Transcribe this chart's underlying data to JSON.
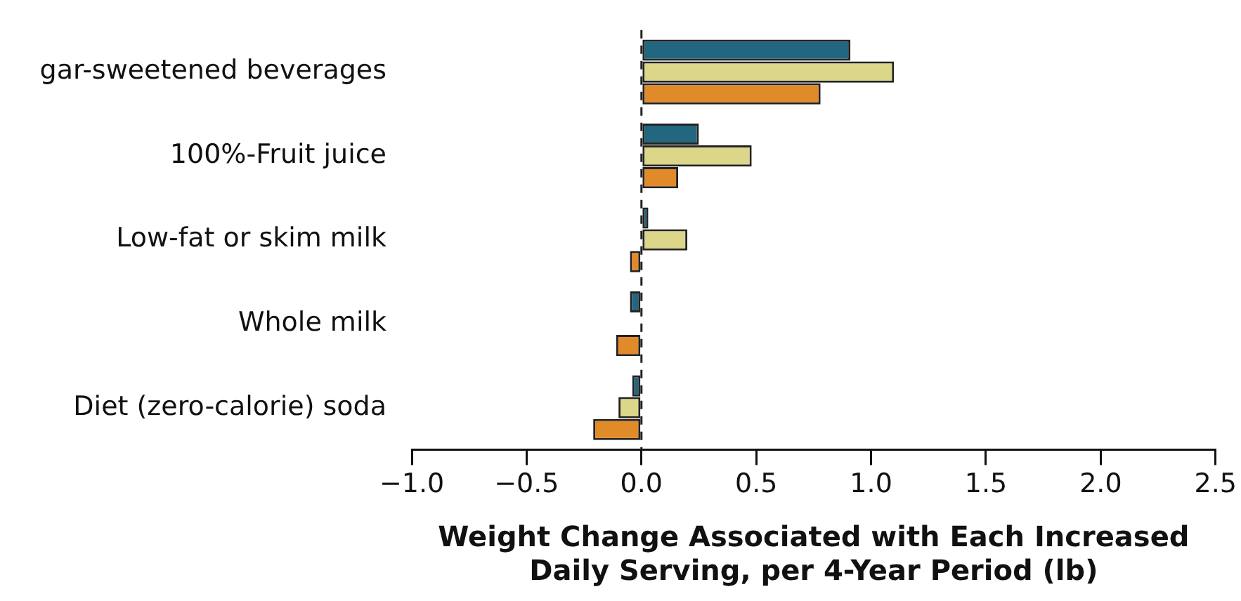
{
  "chart_data": {
    "type": "bar",
    "orientation": "horizontal",
    "categories": [
      "gar-sweetened beverages",
      "100%-Fruit juice",
      "Low-fat or skim milk",
      "Whole milk",
      "Diet (zero-calorie) soda"
    ],
    "series": [
      {
        "color": "#23667f",
        "values": [
          0.91,
          0.25,
          0.03,
          -0.05,
          -0.04
        ]
      },
      {
        "color": "#dcd68a",
        "values": [
          1.1,
          0.48,
          0.2,
          null,
          -0.1
        ]
      },
      {
        "color": "#e08a2a",
        "values": [
          0.78,
          0.16,
          -0.05,
          -0.11,
          -0.21
        ]
      }
    ],
    "xlabel": "Weight Change Associated with Each Increased\nDaily Serving, per 4-Year Period (lb)",
    "xlim": [
      -1,
      2.5
    ],
    "xticks": [
      {
        "value": -1,
        "label": "−1.0"
      },
      {
        "value": -0.5,
        "label": "−0.5"
      },
      {
        "value": 0,
        "label": "0.0"
      },
      {
        "value": 0.5,
        "label": "0.5"
      },
      {
        "value": 1,
        "label": "1.0"
      },
      {
        "value": 1.5,
        "label": "1.5"
      },
      {
        "value": 2,
        "label": "2.0"
      },
      {
        "value": 2.5,
        "label": "2.5"
      }
    ],
    "ref_lines": [
      {
        "axis": "x",
        "value": 0,
        "line_style": "dashed",
        "color": "#222222"
      }
    ]
  }
}
